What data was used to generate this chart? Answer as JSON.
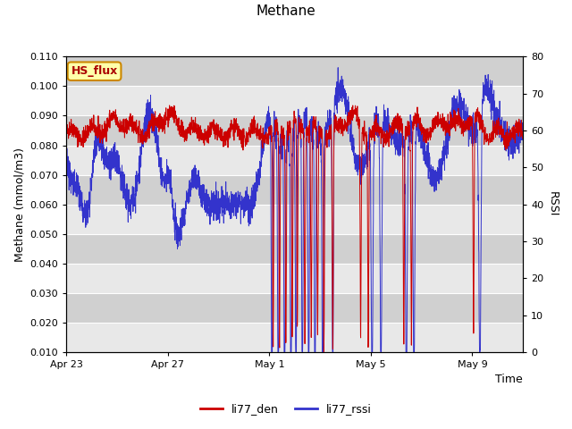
{
  "title": "Methane",
  "xlabel": "Time",
  "ylabel_left": "Methane (mmol/m3)",
  "ylabel_right": "RSSI",
  "ylim_left": [
    0.01,
    0.11
  ],
  "ylim_right": [
    0,
    80
  ],
  "yticks_left": [
    0.01,
    0.02,
    0.03,
    0.04,
    0.05,
    0.06,
    0.07,
    0.08,
    0.09,
    0.1,
    0.11
  ],
  "yticks_right": [
    0,
    10,
    20,
    30,
    40,
    50,
    60,
    70,
    80
  ],
  "color_red": "#cc0000",
  "color_blue": "#3333cc",
  "bg_outer": "#d8d8d8",
  "bg_light": "#e8e8e8",
  "bg_dark": "#d0d0d0",
  "legend_label1": "li77_den",
  "legend_label2": "li77_rssi",
  "annotation_text": "HS_flux",
  "annotation_bg": "#ffffaa",
  "annotation_border": "#cc8800",
  "annotation_text_color": "#aa0000",
  "x_ticklabels": [
    "Apr 23",
    "Apr 27",
    "May 1",
    "May 5",
    "May 9"
  ],
  "x_tick_positions": [
    0,
    4,
    8,
    12,
    16
  ],
  "total_days": 18,
  "seed": 42
}
